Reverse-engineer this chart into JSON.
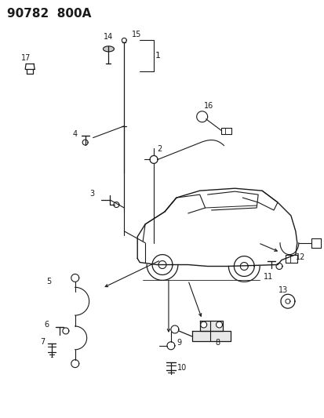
{
  "title": "90782  800A",
  "bg_color": "#ffffff",
  "line_color": "#1a1a1a",
  "title_fontsize": 11,
  "label_fontsize": 7,
  "fig_width": 4.14,
  "fig_height": 5.33,
  "dpi": 100
}
